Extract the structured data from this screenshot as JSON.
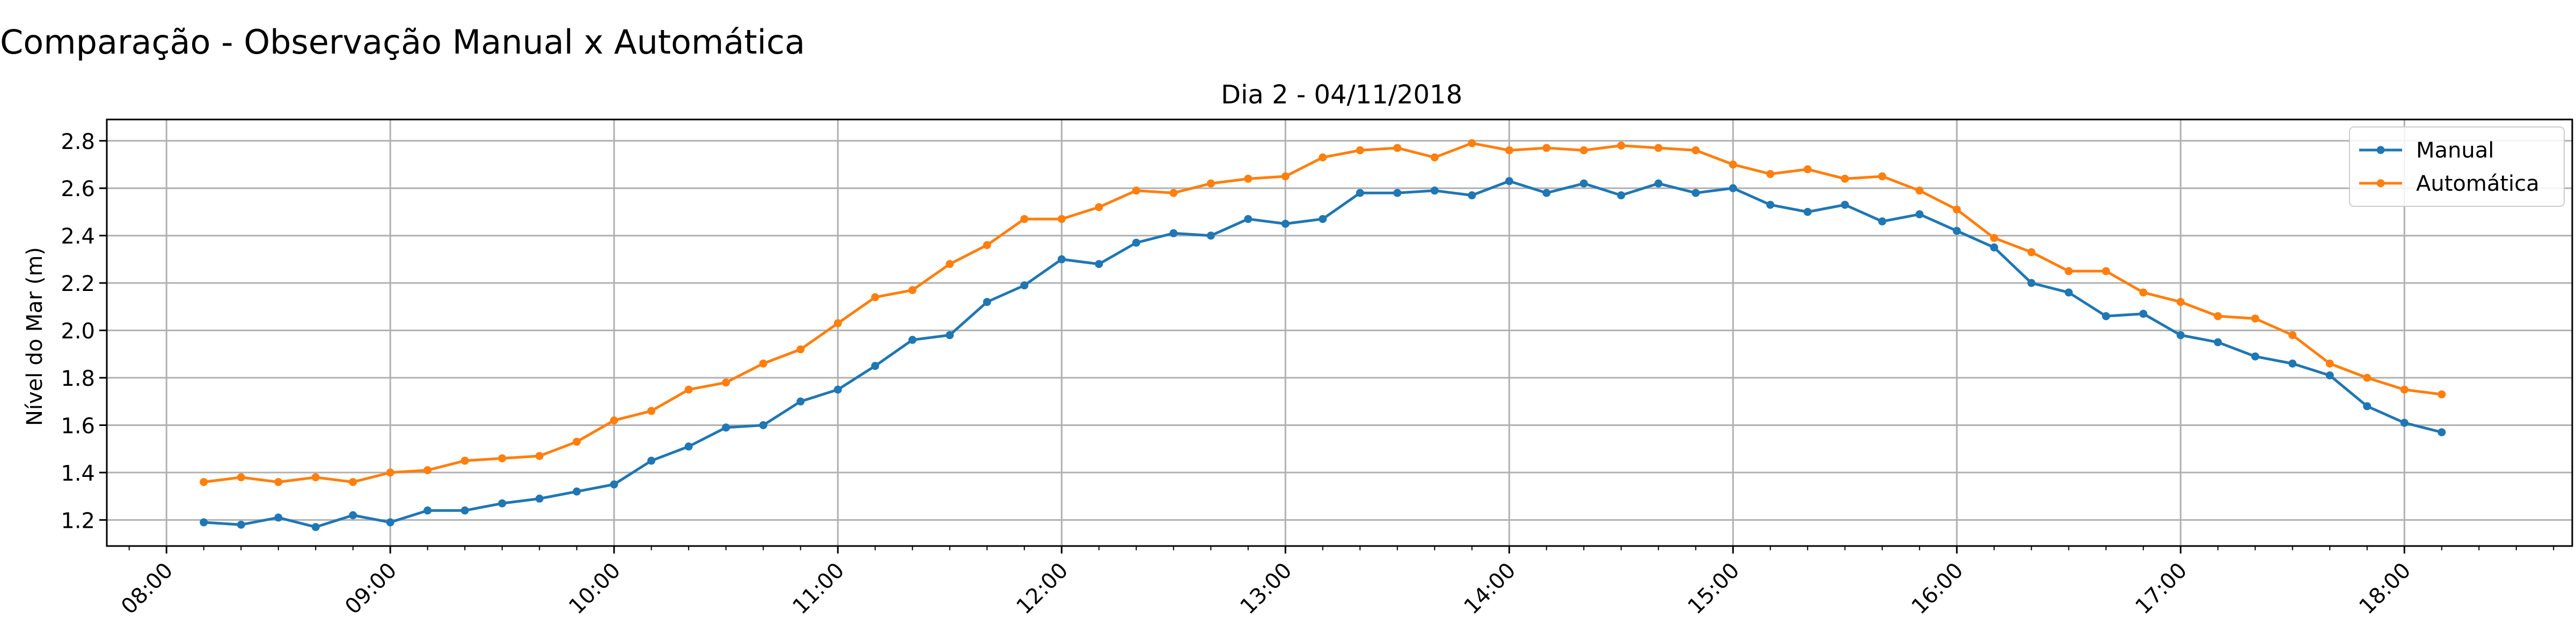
{
  "figure": {
    "suptitle": "Comparação - Observação Manual x Automática"
  },
  "chart_data": {
    "type": "line",
    "title": "Dia 2 - 04/11/2018",
    "xlabel": "",
    "ylabel": "Nível do Mar (m)",
    "x_axis": {
      "kind": "time",
      "range": [
        "07:44",
        "18:45"
      ],
      "ticks": [
        "08:00",
        "09:00",
        "10:00",
        "11:00",
        "12:00",
        "13:00",
        "14:00",
        "15:00",
        "16:00",
        "17:00",
        "18:00"
      ],
      "minor_tick_interval_minutes": 10
    },
    "ylim": [
      1.09,
      2.89
    ],
    "yticks": [
      1.2,
      1.4,
      1.6,
      1.8,
      2.0,
      2.2,
      2.4,
      2.6,
      2.8
    ],
    "grid": true,
    "legend": {
      "placement": "top-right",
      "entries": [
        "Manual",
        "Automática"
      ]
    },
    "x": [
      "08:10",
      "08:20",
      "08:30",
      "08:40",
      "08:50",
      "09:00",
      "09:10",
      "09:20",
      "09:30",
      "09:40",
      "09:50",
      "10:00",
      "10:10",
      "10:20",
      "10:30",
      "10:40",
      "10:50",
      "11:00",
      "11:10",
      "11:20",
      "11:30",
      "11:40",
      "11:50",
      "12:00",
      "12:10",
      "12:20",
      "12:30",
      "12:40",
      "12:50",
      "13:00",
      "13:10",
      "13:20",
      "13:30",
      "13:40",
      "13:50",
      "14:00",
      "14:10",
      "14:20",
      "14:30",
      "14:40",
      "14:50",
      "15:00",
      "15:10",
      "15:20",
      "15:30",
      "15:40",
      "15:50",
      "16:00",
      "16:10",
      "16:20",
      "16:30",
      "16:40",
      "16:50",
      "17:00",
      "17:10",
      "17:20",
      "17:30",
      "17:40",
      "17:50",
      "18:00",
      "18:10"
    ],
    "series": [
      {
        "name": "Manual",
        "color": "#1f77b4",
        "values": [
          1.19,
          1.18,
          1.21,
          1.17,
          1.22,
          1.19,
          1.24,
          1.24,
          1.27,
          1.29,
          1.32,
          1.35,
          1.45,
          1.51,
          1.59,
          1.6,
          1.7,
          1.75,
          1.85,
          1.96,
          1.98,
          2.12,
          2.19,
          2.3,
          2.28,
          2.37,
          2.41,
          2.4,
          2.47,
          2.45,
          2.47,
          2.58,
          2.58,
          2.59,
          2.57,
          2.63,
          2.58,
          2.62,
          2.57,
          2.62,
          2.58,
          2.6,
          2.53,
          2.5,
          2.53,
          2.46,
          2.49,
          2.42,
          2.35,
          2.2,
          2.16,
          2.06,
          2.07,
          1.98,
          1.95,
          1.89,
          1.86,
          1.81,
          1.68,
          1.61,
          1.57
        ]
      },
      {
        "name": "Automática",
        "color": "#ff7f0e",
        "values": [
          1.36,
          1.38,
          1.36,
          1.38,
          1.36,
          1.4,
          1.41,
          1.45,
          1.46,
          1.47,
          1.53,
          1.62,
          1.66,
          1.75,
          1.78,
          1.86,
          1.92,
          2.03,
          2.14,
          2.17,
          2.28,
          2.36,
          2.47,
          2.47,
          2.52,
          2.59,
          2.58,
          2.62,
          2.64,
          2.65,
          2.73,
          2.76,
          2.77,
          2.73,
          2.79,
          2.76,
          2.77,
          2.76,
          2.78,
          2.77,
          2.76,
          2.7,
          2.66,
          2.68,
          2.64,
          2.65,
          2.59,
          2.51,
          2.39,
          2.33,
          2.25,
          2.25,
          2.16,
          2.12,
          2.06,
          2.05,
          1.98,
          1.86,
          1.8,
          1.75,
          1.73
        ]
      }
    ]
  }
}
